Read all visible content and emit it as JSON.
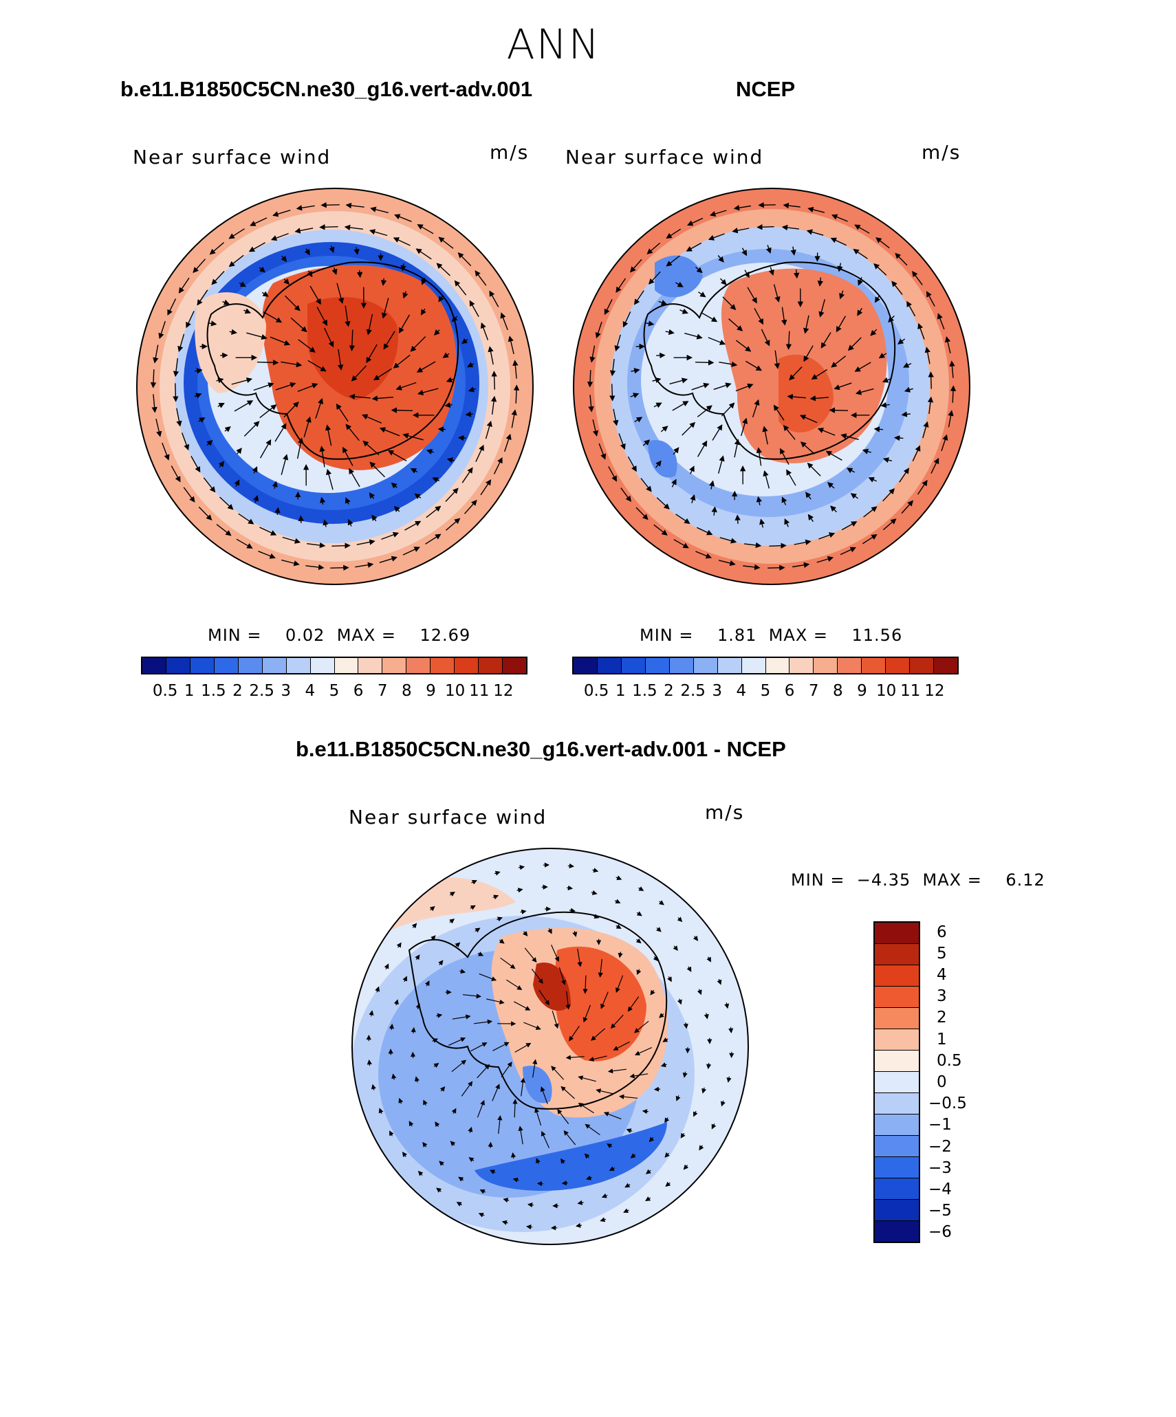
{
  "figure_title": "ANN",
  "panels": [
    {
      "case_title": "b.e11.B1850C5CN.ne30_g16.vert-adv.001",
      "variable_label": "Near surface wind",
      "units": "m/s",
      "stats": "MIN =    0.02  MAX =    12.69",
      "min": "0.02",
      "max": "12.69"
    },
    {
      "case_title": "NCEP",
      "variable_label": "Near surface wind",
      "units": "m/s",
      "stats": "MIN =    1.81  MAX =    11.56",
      "min": "1.81",
      "max": "11.56"
    },
    {
      "case_title": "b.e11.B1850C5CN.ne30_g16.vert-adv.001 - NCEP",
      "variable_label": "Near surface wind",
      "units": "m/s",
      "stats": "MIN =  −4.35  MAX =    6.12",
      "min": "−4.35",
      "max": "6.12"
    }
  ],
  "colorbar_abs": {
    "colors": [
      "#08107f",
      "#0a2fb5",
      "#1a4fd8",
      "#2e6ae8",
      "#5a8cf0",
      "#8cb0f4",
      "#b8d0f8",
      "#dfeafb",
      "#fbeee2",
      "#f9d2bf",
      "#f6ae8f",
      "#f08060",
      "#e95a33",
      "#db3d1a",
      "#bb2810",
      "#8e0f0b"
    ],
    "tick_labels": [
      "0.5",
      "1",
      "1.5",
      "2",
      "2.5",
      "3",
      "4",
      "5",
      "6",
      "7",
      "8",
      "9",
      "10",
      "11",
      "12"
    ]
  },
  "colorbar_diff": {
    "colors": [
      "#8e0f0b",
      "#bb2810",
      "#e0401a",
      "#f05a30",
      "#f6895e",
      "#f9c0a4",
      "#fbeee2",
      "#dfeafb",
      "#b8d0f8",
      "#8cb0f4",
      "#5a8cf0",
      "#2e6ae8",
      "#1a4fd8",
      "#0a2fb5",
      "#08107f"
    ],
    "tick_labels": [
      "6",
      "5",
      "4",
      "3",
      "2",
      "1",
      "0.5",
      "0",
      "−0.5",
      "−1",
      "−2",
      "−3",
      "−4",
      "−5",
      "−6"
    ]
  },
  "chart_data": {
    "type": "polar-map-vector",
    "projection": "south-polar-stereographic",
    "region": "Antarctica / Southern Ocean",
    "season": "ANN",
    "variable": "Near surface wind",
    "units": "m/s",
    "maps": [
      {
        "name": "b.e11.B1850C5CN.ne30_g16.vert-adv.001",
        "min": 0.02,
        "max": 12.69,
        "contour_levels": [
          0.5,
          1,
          1.5,
          2,
          2.5,
          3,
          4,
          5,
          6,
          7,
          8,
          9,
          10,
          11,
          12
        ]
      },
      {
        "name": "NCEP",
        "min": 1.81,
        "max": 11.56,
        "contour_levels": [
          0.5,
          1,
          1.5,
          2,
          2.5,
          3,
          4,
          5,
          6,
          7,
          8,
          9,
          10,
          11,
          12
        ]
      },
      {
        "name": "b.e11.B1850C5CN.ne30_g16.vert-adv.001 - NCEP",
        "min": -4.35,
        "max": 6.12,
        "contour_levels": [
          -6,
          -5,
          -4,
          -3,
          -2,
          -1,
          -0.5,
          0,
          0.5,
          1,
          2,
          3,
          4,
          5,
          6
        ]
      }
    ]
  }
}
